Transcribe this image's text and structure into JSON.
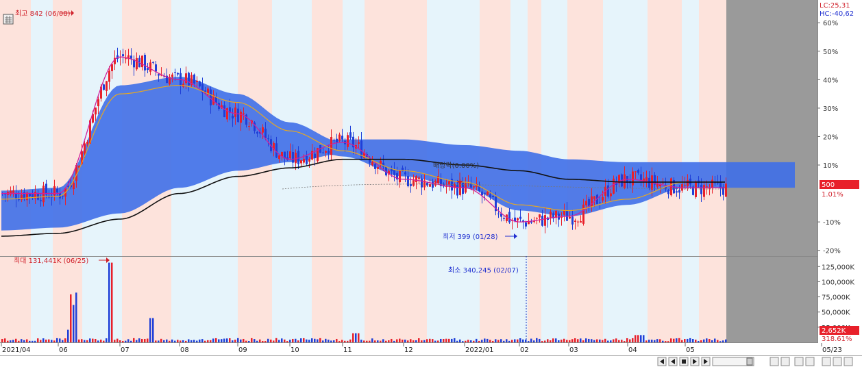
{
  "header": {
    "lc_label": "LC:25,31",
    "hc_label": "HC:-40,62"
  },
  "annotations": {
    "high_price": "최고 842 (06/08)",
    "low_price": "최저 399 (01/28)",
    "max_volume": "최대 131,441K (06/25)",
    "min_volume": "최소 340,245 (02/07)",
    "dividend": "배당락(0.00%)"
  },
  "price_axis": {
    "ticks": [
      "60%",
      "50%",
      "40%",
      "30%",
      "20%",
      "10%",
      "-10%",
      "-20%"
    ],
    "current_price": "500",
    "current_change": "1.01%"
  },
  "volume_axis": {
    "ticks": [
      "125,000K",
      "100,000K",
      "75,000K",
      "50,000K",
      "25,000K"
    ],
    "current_volume": "2,652K",
    "volume_ratio": "318.61%"
  },
  "x_axis": {
    "labels": [
      "2021/04",
      "06",
      "07",
      "08",
      "09",
      "10",
      "11",
      "12",
      "2022/01",
      "02",
      "03",
      "04",
      "05",
      "05/23"
    ]
  },
  "colors": {
    "up": "#e8202a",
    "down": "#1f3fd8",
    "cloud": "#3f6fe8",
    "ma_short": "#d0209a",
    "ma_mid": "#e8a820",
    "ma_long": "#111111",
    "band_pink": "#fde3dc",
    "band_blue": "#e6f4fb",
    "price_box": "#e8202a"
  },
  "chart_data": {
    "type": "line",
    "title": "",
    "xlabel": "",
    "ylabel": "",
    "x": [
      "2021/04",
      "06",
      "07",
      "08",
      "09",
      "10",
      "11",
      "12",
      "2022/01",
      "02",
      "03",
      "04",
      "05"
    ],
    "series": [
      {
        "values": [
          0,
          0,
          48,
          40,
          28,
          12,
          18,
          5,
          2,
          -10,
          -8,
          5,
          2
        ]
      },
      {
        "values": [
          -2,
          -1,
          35,
          38,
          32,
          22,
          15,
          8,
          4,
          -4,
          -6,
          -2,
          4
        ]
      },
      {
        "values": [
          -15,
          -14,
          -9,
          0,
          6,
          9,
          12,
          12,
          10,
          8,
          5,
          4,
          4
        ]
      }
    ],
    "ylim": [
      -22,
      68
    ],
    "volume_ylim": [
      0,
      140000
    ],
    "volume_unit": "K",
    "extremes": {
      "high": {
        "value": 842,
        "date": "06/08"
      },
      "low": {
        "value": 399,
        "date": "01/28"
      },
      "max_volume": {
        "value": 131441,
        "unit": "K",
        "date": "06/25"
      },
      "min_volume": {
        "value": 340245,
        "date": "02/07"
      }
    }
  }
}
